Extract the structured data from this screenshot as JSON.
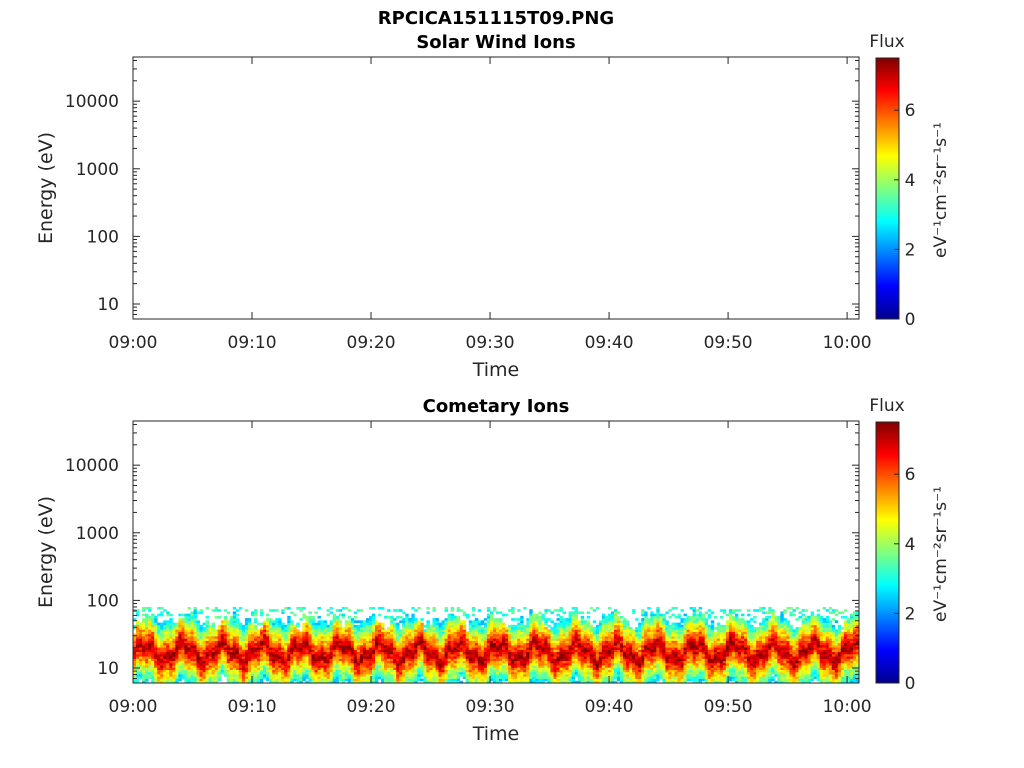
{
  "figure": {
    "title": "RPCICA151115T09.PNG"
  },
  "colors": {
    "axis": "#262626",
    "colormap": "jet"
  },
  "chart_data": [
    {
      "type": "heatmap",
      "title": "Solar Wind Ions",
      "xlabel": "Time",
      "ylabel": "Energy (eV)",
      "yscale": "log",
      "xlim": [
        "09:00",
        "10:01"
      ],
      "ylim": [
        6,
        45000
      ],
      "xticks": [
        "09:00",
        "09:10",
        "09:20",
        "09:30",
        "09:40",
        "09:50",
        "10:00"
      ],
      "yticks": [
        {
          "value": 10,
          "label": "10"
        },
        {
          "value": 100,
          "label": "100"
        },
        {
          "value": 1000,
          "label": "1000"
        },
        {
          "value": 10000,
          "label": "10000"
        }
      ],
      "colorbar": {
        "title": "Flux",
        "label": "eV⁻¹cm⁻²sr⁻¹s⁻¹",
        "range": [
          0,
          7.5
        ],
        "ticks": [
          {
            "value": 0,
            "label": "0"
          },
          {
            "value": 2,
            "label": "2"
          },
          {
            "value": 4,
            "label": "4"
          },
          {
            "value": 6,
            "label": "6"
          }
        ]
      },
      "data": []
    },
    {
      "type": "heatmap",
      "title": "Cometary Ions",
      "xlabel": "Time",
      "ylabel": "Energy (eV)",
      "yscale": "log",
      "xlim": [
        "09:00",
        "10:01"
      ],
      "ylim": [
        6,
        45000
      ],
      "xticks": [
        "09:00",
        "09:10",
        "09:20",
        "09:30",
        "09:40",
        "09:50",
        "10:00"
      ],
      "yticks": [
        {
          "value": 10,
          "label": "10"
        },
        {
          "value": 100,
          "label": "100"
        },
        {
          "value": 1000,
          "label": "1000"
        },
        {
          "value": 10000,
          "label": "10000"
        }
      ],
      "colorbar": {
        "title": "Flux",
        "label": "eV⁻¹cm⁻²sr⁻¹s⁻¹",
        "range": [
          0,
          7.5
        ],
        "ticks": [
          {
            "value": 0,
            "label": "0"
          },
          {
            "value": 2,
            "label": "2"
          },
          {
            "value": 4,
            "label": "4"
          },
          {
            "value": 6,
            "label": "6"
          }
        ]
      },
      "data": {
        "energy_range_eV": [
          6,
          80
        ],
        "peak_flux_energy_eV": [
          12,
          25
        ],
        "peak_flux": 7.2
      }
    }
  ]
}
